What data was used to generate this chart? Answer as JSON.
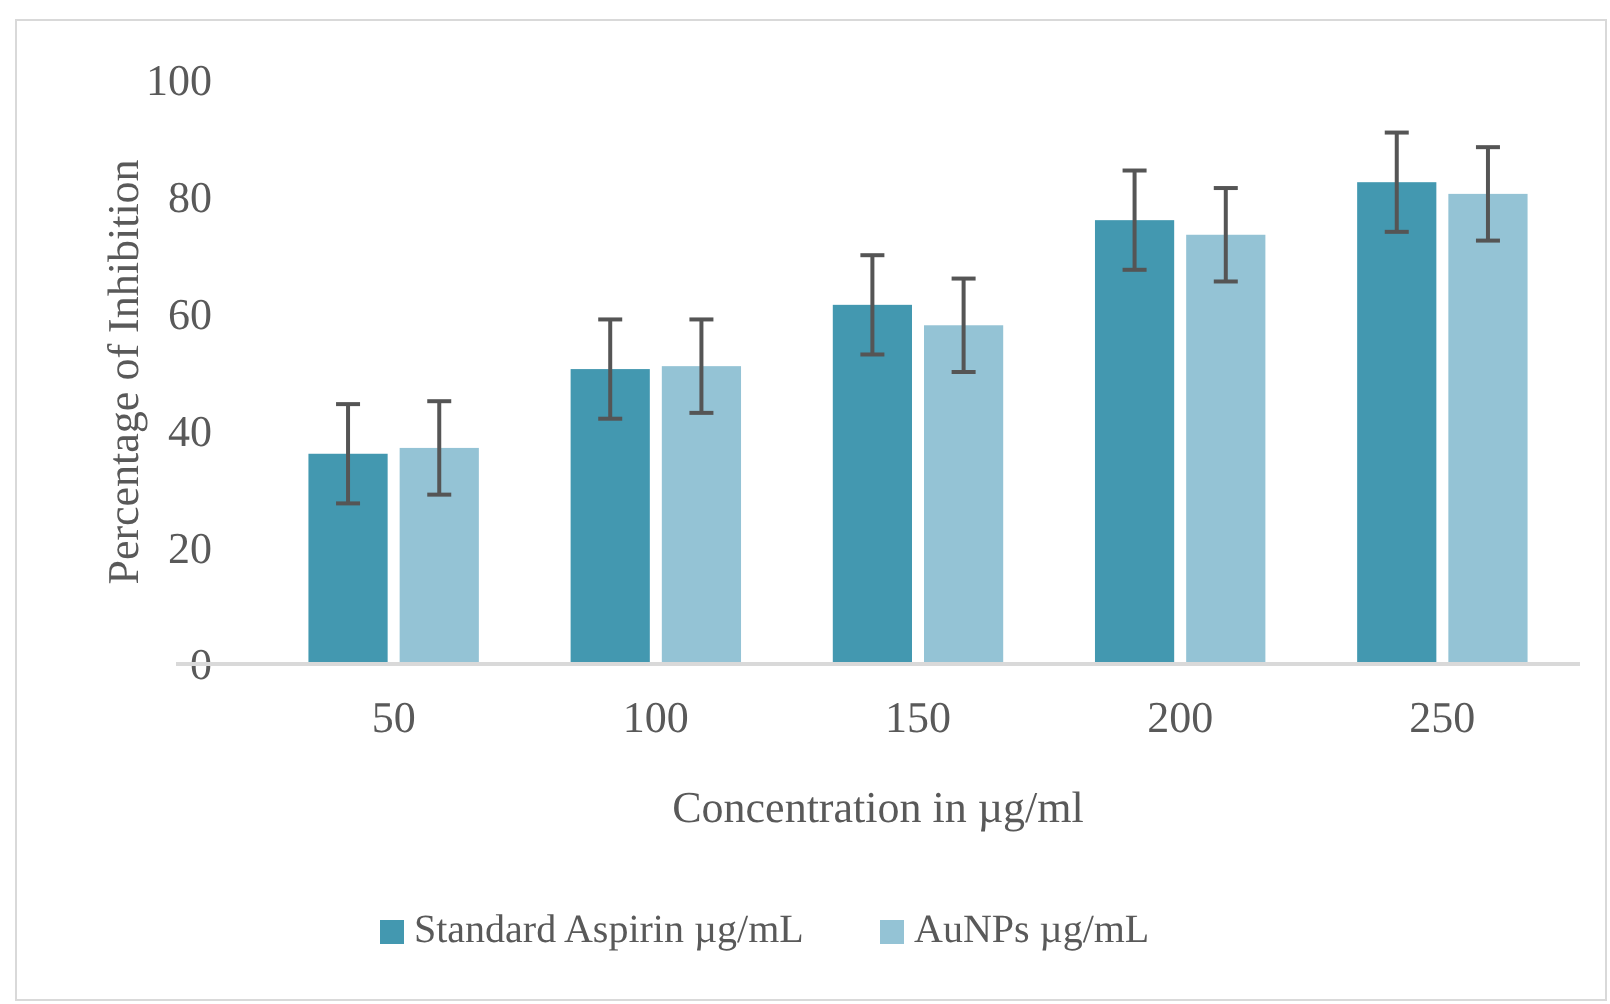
{
  "chart_data": {
    "type": "bar",
    "xlabel": "Concentration in µg/ml",
    "ylabel": "Percentage of Inhibition",
    "categories": [
      "50",
      "100",
      "150",
      "200",
      "250"
    ],
    "series": [
      {
        "name": "Standard Aspirin µg/mL",
        "color": "#4398b0",
        "values": [
          36,
          50.5,
          61.5,
          76,
          82.5
        ],
        "errors": [
          8.5,
          8.5,
          8.5,
          8.5,
          8.5
        ]
      },
      {
        "name": "AuNPs µg/mL",
        "color": "#94c3d5",
        "values": [
          37,
          51,
          58,
          73.5,
          80.5
        ],
        "errors": [
          8,
          8,
          8,
          8,
          8
        ]
      }
    ],
    "ylim": [
      0,
      100
    ],
    "yticks": [
      0,
      20,
      40,
      60,
      80,
      100
    ],
    "grid": false,
    "legend": "bottom"
  }
}
